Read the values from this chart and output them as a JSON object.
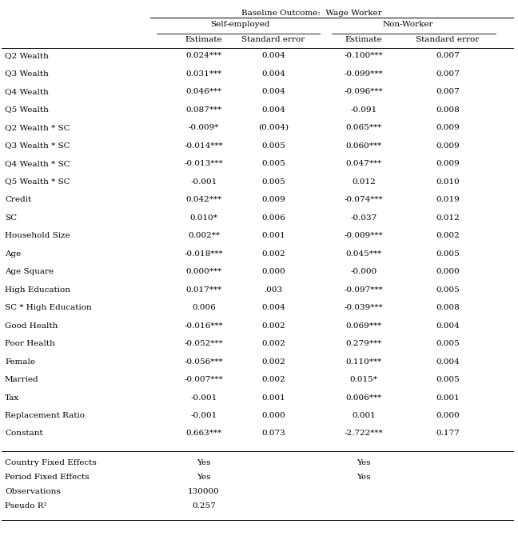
{
  "title": "Baseline Outcome:  Wage Worker",
  "col_headers_level1": [
    "Self-employed",
    "Non-Worker"
  ],
  "col_headers_level2": [
    "Estimate",
    "Standard error",
    "Estimate",
    "Standard error"
  ],
  "rows": [
    [
      "Q2 Wealth",
      "0.024***",
      "0.004",
      "-0.100***",
      "0.007"
    ],
    [
      "Q3 Wealth",
      "0.031***",
      "0.004",
      "-0.099***",
      "0.007"
    ],
    [
      "Q4 Wealth",
      "0.046***",
      "0.004",
      "-0.096***",
      "0.007"
    ],
    [
      "Q5 Wealth",
      "0.087***",
      "0.004",
      "-0.091",
      "0.008"
    ],
    [
      "Q2 Wealth * SC",
      "-0.009*",
      "(0.004)",
      "0.065***",
      "0.009"
    ],
    [
      "Q3 Wealth * SC",
      "-0.014***",
      "0.005",
      "0.060***",
      "0.009"
    ],
    [
      "Q4 Wealth * SC",
      "-0.013***",
      "0.005",
      "0.047***",
      "0.009"
    ],
    [
      "Q5 Wealth * SC",
      "-0.001",
      "0.005",
      "0.012",
      "0.010"
    ],
    [
      "Credit",
      "0.042***",
      "0.009",
      "-0.074***",
      "0.019"
    ],
    [
      "SC",
      "0.010*",
      "0.006",
      "-0.037",
      "0.012"
    ],
    [
      "Household Size",
      "0.002**",
      "0.001",
      "-0.009***",
      "0.002"
    ],
    [
      "Age",
      "-0.018***",
      "0.002",
      "0.045***",
      "0.005"
    ],
    [
      "Age Square",
      "0.000***",
      "0.000",
      "-0.000",
      "0.000"
    ],
    [
      "High Education",
      "0.017***",
      ".003",
      "-0.097***",
      "0.005"
    ],
    [
      "SC * High Education",
      "0.006",
      "0.004",
      "-0.039***",
      "0.008"
    ],
    [
      "Good Health",
      "-0.016***",
      "0.002",
      "0.069***",
      "0.004"
    ],
    [
      "Poor Health",
      "-0.052***",
      "0.002",
      "0.279***",
      "0.005"
    ],
    [
      "Female",
      "-0.056***",
      "0.002",
      "0.110***",
      "0.004"
    ],
    [
      "Married",
      "-0.007***",
      "0.002",
      "0.015*",
      "0.005"
    ],
    [
      "Tax",
      "-0.001",
      "0.001",
      "0.006***",
      "0.001"
    ],
    [
      "Replacement Ratio",
      "-0.001",
      "0.000",
      "0.001",
      "0.000"
    ],
    [
      "Constant",
      "0.663***",
      "0.073",
      "-2.722***",
      "0.177"
    ]
  ],
  "footer_rows": [
    [
      "Country Fixed Effects",
      "Yes",
      "Yes"
    ],
    [
      "Period Fixed Effects",
      "Yes",
      "Yes"
    ],
    [
      "Observations",
      "130000",
      ""
    ],
    [
      "Pseudo R²",
      "0.257",
      ""
    ]
  ],
  "font_size": 7.5,
  "bg_color": "#ffffff",
  "text_color": "#000000"
}
